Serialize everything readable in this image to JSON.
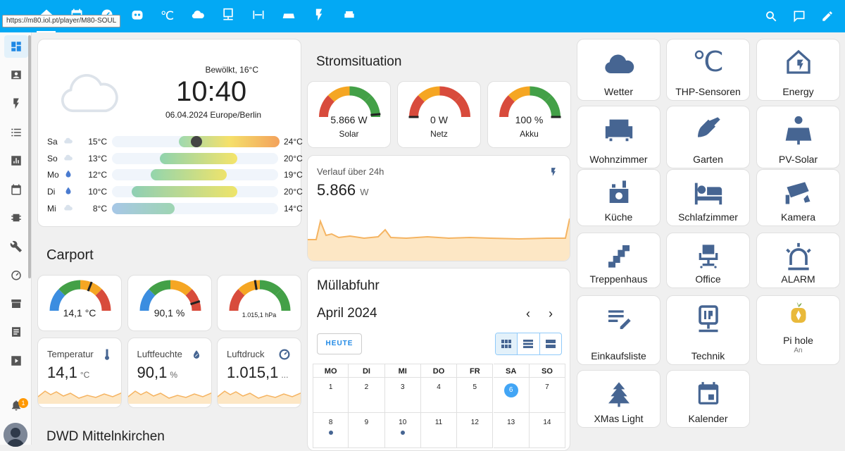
{
  "browser": {
    "status_url": "https://m80.iol.pt/player/M80-SOUL"
  },
  "colors": {
    "accent": "#03a9f4",
    "icon_blue": "#466592",
    "today": "#42a5f5"
  },
  "notifications": {
    "count": "1"
  },
  "weather": {
    "condition": "Bewölkt, 16°C",
    "time": "10:40",
    "date": "06.04.2024 Europe/Berlin",
    "forecast": [
      {
        "day": "Sa",
        "icon": "partly-cloudy-icon",
        "low": "15°C",
        "high": "24°C"
      },
      {
        "day": "So",
        "icon": "partly-cloudy-icon",
        "low": "13°C",
        "high": "20°C"
      },
      {
        "day": "Mo",
        "icon": "rain-icon",
        "low": "12°C",
        "high": "19°C"
      },
      {
        "day": "Di",
        "icon": "rain-icon",
        "low": "10°C",
        "high": "20°C"
      },
      {
        "day": "Mi",
        "icon": "partly-cloudy-icon",
        "low": "8°C",
        "high": "14°C"
      }
    ]
  },
  "carport": {
    "title": "Carport",
    "gauges": [
      {
        "value": "14,1 °C",
        "level": 0.62
      },
      {
        "value": "90,1 %",
        "level": 0.9
      },
      {
        "value": "1.015,1 hPa",
        "level": 0.45
      }
    ],
    "sensors": [
      {
        "title": "Temperatur",
        "value": "14,1",
        "unit": "°C",
        "icon": "thermometer-icon"
      },
      {
        "title": "Luftfeuchte",
        "value": "90,1",
        "unit": "%",
        "icon": "water-percent-icon"
      },
      {
        "title": "Luftdruck",
        "value": "1.015,1",
        "unit": "...",
        "icon": "gauge-icon"
      }
    ]
  },
  "dwd": {
    "title": "DWD Mittelnkirchen"
  },
  "power": {
    "title": "Stromsituation",
    "gauges": [
      {
        "value": "5.866 W",
        "label": "Solar",
        "level": 0.97
      },
      {
        "value": "0 W",
        "label": "Netz",
        "level": 0.0
      },
      {
        "value": "100 %",
        "label": "Akku",
        "level": 1.0
      }
    ],
    "history": {
      "title": "Verlauf über 24h",
      "value": "5.866",
      "unit": "W"
    }
  },
  "waste": {
    "title": "Müllabfuhr",
    "month": "April 2024",
    "today_button": "HEUTE",
    "weekdays": [
      "MO",
      "DI",
      "MI",
      "DO",
      "FR",
      "SA",
      "SO"
    ],
    "week1": [
      "1",
      "2",
      "3",
      "4",
      "5",
      "6",
      "7"
    ],
    "week2": [
      "8",
      "9",
      "10",
      "11",
      "12",
      "13",
      "14"
    ],
    "today": "6"
  },
  "tiles": [
    {
      "label": "Wetter",
      "icon": "cloud-icon"
    },
    {
      "label": "THP-Sensoren",
      "icon": "celsius-icon"
    },
    {
      "label": "Energy",
      "icon": "home-lightning-icon"
    },
    {
      "label": "Wohnzimmer",
      "icon": "sofa-icon"
    },
    {
      "label": "Garten",
      "icon": "shovel-icon"
    },
    {
      "label": "PV-Solar",
      "icon": "solar-panel-icon"
    },
    {
      "label": "Küche",
      "icon": "stove-icon"
    },
    {
      "label": "Schlafzimmer",
      "icon": "bed-icon"
    },
    {
      "label": "Kamera",
      "icon": "cctv-icon"
    },
    {
      "label": "Treppenhaus",
      "icon": "stairs-icon"
    },
    {
      "label": "Office",
      "icon": "office-chair-icon"
    },
    {
      "label": "ALARM",
      "icon": "alarm-light-icon"
    },
    {
      "label": "Einkaufsliste",
      "icon": "list-edit-icon"
    },
    {
      "label": "Technik",
      "icon": "ip-network-icon"
    },
    {
      "label": "Pi hole",
      "icon": "pihole-icon",
      "state": "An"
    },
    {
      "label": "XMas Light",
      "icon": "pine-tree-icon"
    },
    {
      "label": "Kalender",
      "icon": "calendar-icon"
    }
  ]
}
